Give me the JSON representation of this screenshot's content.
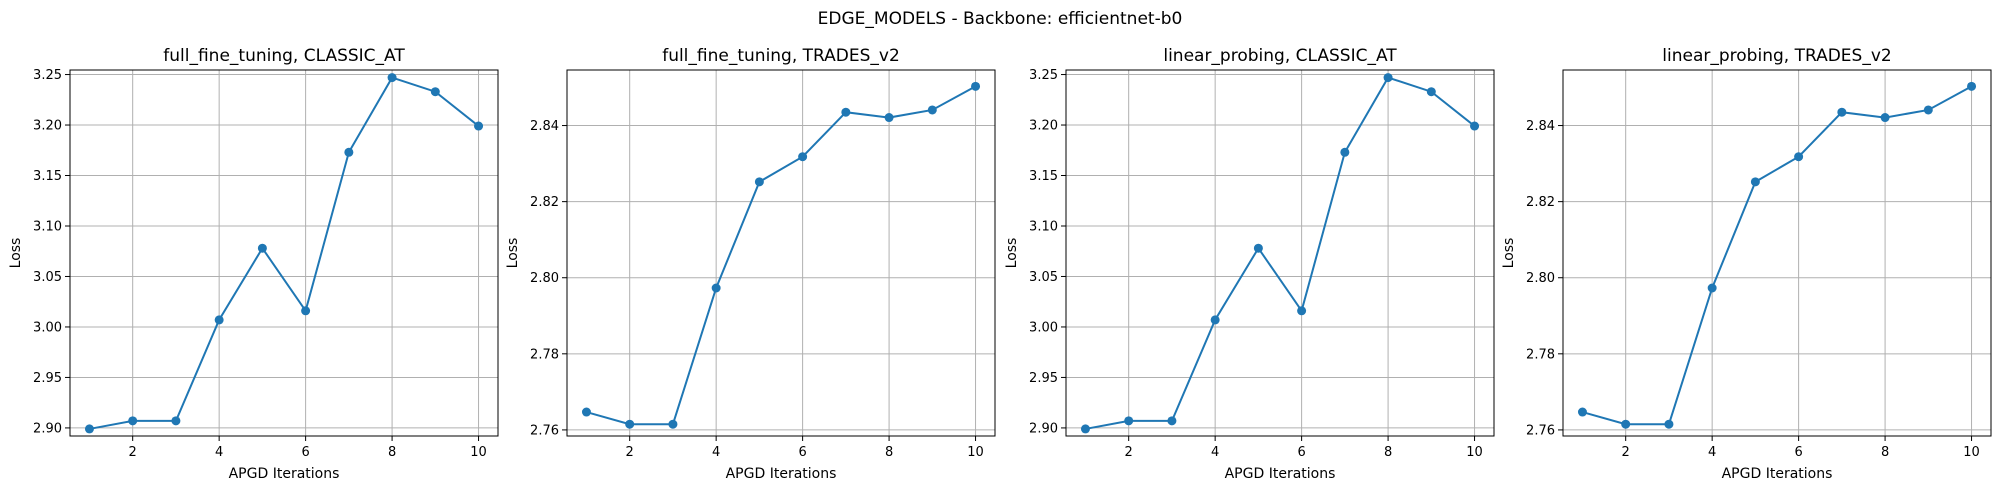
{
  "figure": {
    "suptitle": "EDGE_MODELS - Backbone: efficientnet-b0"
  },
  "colors": {
    "series": "#1f77b4",
    "grid": "#b0b0b0"
  },
  "chart_data": [
    {
      "type": "line",
      "title": "full_fine_tuning, CLASSIC_AT",
      "xlabel": "APGD Iterations",
      "ylabel": "Loss",
      "x": [
        1,
        2,
        3,
        4,
        5,
        6,
        7,
        8,
        9,
        10
      ],
      "y": [
        2.899,
        2.907,
        2.907,
        3.007,
        3.078,
        3.016,
        3.173,
        3.247,
        3.233,
        3.199
      ],
      "xlim": [
        0.55,
        10.45
      ],
      "ylim": [
        2.892,
        3.2545
      ],
      "xticks": [
        2,
        4,
        6,
        8,
        10
      ],
      "yticks": [
        2.9,
        2.95,
        3.0,
        3.05,
        3.1,
        3.15,
        3.2,
        3.25
      ],
      "ytick_labels": [
        "2.90",
        "2.95",
        "3.00",
        "3.05",
        "3.10",
        "3.15",
        "3.20",
        "3.25"
      ],
      "grid": true,
      "marker": "circle"
    },
    {
      "type": "line",
      "title": "full_fine_tuning, TRADES_v2",
      "xlabel": "APGD Iterations",
      "ylabel": "Loss",
      "x": [
        1,
        2,
        3,
        4,
        5,
        6,
        7,
        8,
        9,
        10
      ],
      "y": [
        2.7647,
        2.7615,
        2.7615,
        2.7973,
        2.8252,
        2.8318,
        2.8435,
        2.8421,
        2.8441,
        2.8503
      ],
      "xlim": [
        0.55,
        10.45
      ],
      "ylim": [
        2.7584,
        2.8546
      ],
      "xticks": [
        2,
        4,
        6,
        8,
        10
      ],
      "yticks": [
        2.76,
        2.78,
        2.8,
        2.82,
        2.84
      ],
      "ytick_labels": [
        "2.76",
        "2.78",
        "2.80",
        "2.82",
        "2.84"
      ],
      "grid": true,
      "marker": "circle"
    },
    {
      "type": "line",
      "title": "linear_probing, CLASSIC_AT",
      "xlabel": "APGD Iterations",
      "ylabel": "Loss",
      "x": [
        1,
        2,
        3,
        4,
        5,
        6,
        7,
        8,
        9,
        10
      ],
      "y": [
        2.899,
        2.907,
        2.907,
        3.007,
        3.078,
        3.016,
        3.173,
        3.247,
        3.233,
        3.199
      ],
      "xlim": [
        0.55,
        10.45
      ],
      "ylim": [
        2.892,
        3.2545
      ],
      "xticks": [
        2,
        4,
        6,
        8,
        10
      ],
      "yticks": [
        2.9,
        2.95,
        3.0,
        3.05,
        3.1,
        3.15,
        3.2,
        3.25
      ],
      "ytick_labels": [
        "2.90",
        "2.95",
        "3.00",
        "3.05",
        "3.10",
        "3.15",
        "3.20",
        "3.25"
      ],
      "grid": true,
      "marker": "circle"
    },
    {
      "type": "line",
      "title": "linear_probing, TRADES_v2",
      "xlabel": "APGD Iterations",
      "ylabel": "Loss",
      "x": [
        1,
        2,
        3,
        4,
        5,
        6,
        7,
        8,
        9,
        10
      ],
      "y": [
        2.7647,
        2.7615,
        2.7615,
        2.7973,
        2.8252,
        2.8318,
        2.8435,
        2.8421,
        2.8441,
        2.8503
      ],
      "xlim": [
        0.55,
        10.45
      ],
      "ylim": [
        2.7584,
        2.8546
      ],
      "xticks": [
        2,
        4,
        6,
        8,
        10
      ],
      "yticks": [
        2.76,
        2.78,
        2.8,
        2.82,
        2.84
      ],
      "ytick_labels": [
        "2.76",
        "2.78",
        "2.80",
        "2.82",
        "2.84"
      ],
      "grid": true,
      "marker": "circle"
    }
  ]
}
